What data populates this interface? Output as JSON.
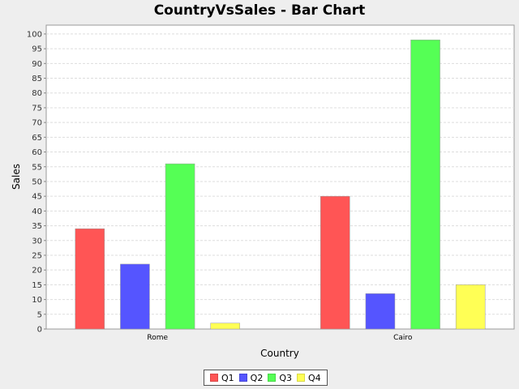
{
  "chart_data": {
    "type": "bar",
    "title": "CountryVsSales - Bar Chart",
    "xlabel": "Country",
    "ylabel": "Sales",
    "categories": [
      "Rome",
      "Cairo"
    ],
    "series": [
      {
        "name": "Q1",
        "color": "#ff5555",
        "values": [
          34,
          45
        ]
      },
      {
        "name": "Q2",
        "color": "#5555ff",
        "values": [
          22,
          12
        ]
      },
      {
        "name": "Q3",
        "color": "#55ff55",
        "values": [
          56,
          98
        ]
      },
      {
        "name": "Q4",
        "color": "#ffff55",
        "values": [
          2,
          15
        ]
      }
    ],
    "ylim": [
      0,
      103
    ],
    "yticks": [
      0,
      5,
      10,
      15,
      20,
      25,
      30,
      35,
      40,
      45,
      50,
      55,
      60,
      65,
      70,
      75,
      80,
      85,
      90,
      95,
      100
    ],
    "grid": true,
    "legend_position": "bottom"
  }
}
